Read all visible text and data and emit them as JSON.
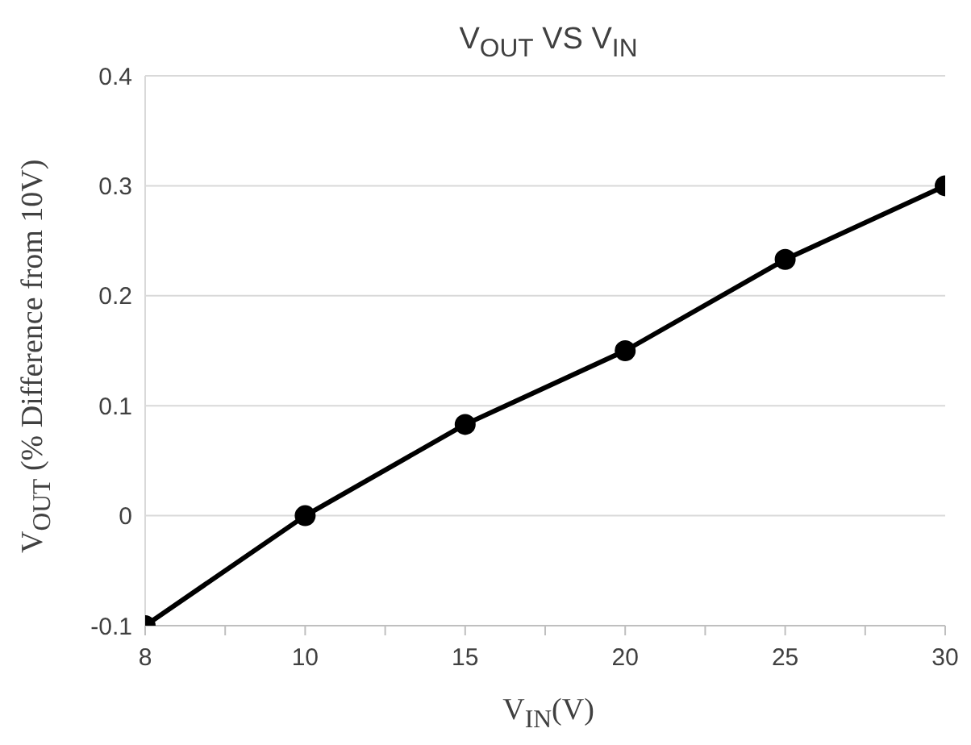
{
  "chart_data": {
    "type": "line",
    "title": "V$_{OUT}$ VS  V$_{IN}$",
    "xlabel": "V$_{IN}$(V)",
    "ylabel": "V$_{OUT}$ (% Difference from 10V)",
    "categories": [
      "8",
      "10",
      "15",
      "20",
      "25",
      "30"
    ],
    "series": [
      {
        "color": "#000000",
        "values": [
          -0.1,
          0,
          0.083,
          0.15,
          0.233,
          0.3
        ]
      }
    ],
    "ylim": [
      -0.1,
      0.4
    ],
    "yticks": [
      -0.1,
      0,
      0.1,
      0.2,
      0.3,
      0.4
    ],
    "grid": "y",
    "marker": "circle",
    "line_style": "solid",
    "legend": false
  }
}
